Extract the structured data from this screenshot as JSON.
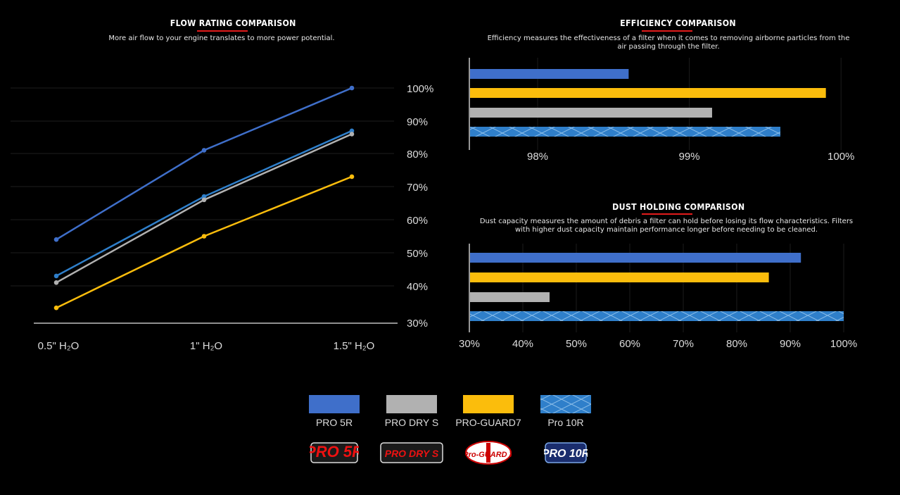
{
  "flow": {
    "title": "FLOW RATING COMPARISON",
    "subtitle": "More air flow to your engine translates to more power potential."
  },
  "efficiency": {
    "title": "EFFICIENCY COMPARISON",
    "subtitle_line1": "Efficiency measures the effectiveness of a filter when it comes to removing airborne particles from the",
    "subtitle_line2": "air passing through the filter."
  },
  "dust": {
    "title": "DUST HOLDING COMPARISON",
    "subtitle_line1": "Dust capacity measures the amount of debris a filter can hold before losing its flow characteristics. Filters",
    "subtitle_line2": "with higher dust capacity maintain performance longer before needing to be cleaned."
  },
  "legend": [
    {
      "label": "PRO 5R",
      "color": "#3f6fca",
      "pattern": "solid"
    },
    {
      "label": "PRO DRY S",
      "color": "#b1b1b1",
      "pattern": "solid"
    },
    {
      "label": "PRO-GUARD7",
      "color": "#fbbd0c",
      "pattern": "solid"
    },
    {
      "label": "Pro 10R",
      "color": "#2f7fca",
      "pattern": "cross-hatch"
    }
  ],
  "logos": [
    {
      "text": "PRO 5R",
      "icon": "pro-5r-logo"
    },
    {
      "text": "PRO DRY S",
      "icon": "pro-dry-s-logo"
    },
    {
      "text": "Pro-GUARD 7",
      "icon": "pro-guard-7-logo"
    },
    {
      "text": "PRO 10R",
      "icon": "pro-10r-logo"
    }
  ],
  "chart_data": [
    {
      "type": "line",
      "title": "FLOW RATING COMPARISON",
      "x": [
        "0.5\" H2O",
        "1\" H2O",
        "1.5\" H2O"
      ],
      "yticks": [
        "100%",
        "90%",
        "80%",
        "70%",
        "60%",
        "50%",
        "40%",
        "30%"
      ],
      "ylim": [
        30,
        100
      ],
      "grid": true,
      "series": [
        {
          "name": "PRO 5R",
          "color": "#3f6fca",
          "values": [
            54,
            81,
            100
          ]
        },
        {
          "name": "Pro 10R",
          "color": "#2f7fca",
          "values": [
            43,
            67,
            87
          ]
        },
        {
          "name": "PRO DRY S",
          "color": "#b1b1b1",
          "values": [
            41,
            66,
            86
          ]
        },
        {
          "name": "PRO-GUARD7",
          "color": "#fbbd0c",
          "values": [
            34,
            55,
            73
          ]
        }
      ]
    },
    {
      "type": "bar",
      "orientation": "horizontal",
      "title": "EFFICIENCY COMPARISON",
      "xticks": [
        "98%",
        "99%",
        "100%"
      ],
      "xlim": [
        97.55,
        100.05
      ],
      "categories": [
        "PRO 5R",
        "PRO-GUARD7",
        "PRO DRY S",
        "Pro 10R"
      ],
      "values": [
        98.6,
        99.9,
        99.15,
        99.6
      ],
      "colors": [
        "#3f6fca",
        "#fbbd0c",
        "#b1b1b1",
        "#2f7fca"
      ],
      "grid": true
    },
    {
      "type": "bar",
      "orientation": "horizontal",
      "title": "DUST HOLDING COMPARISON",
      "xticks": [
        "30%",
        "40%",
        "50%",
        "60%",
        "70%",
        "80%",
        "90%",
        "100%"
      ],
      "xlim": [
        30,
        100
      ],
      "categories": [
        "PRO 5R",
        "PRO-GUARD7",
        "PRO DRY S",
        "Pro 10R"
      ],
      "values": [
        92,
        86,
        45,
        100
      ],
      "colors": [
        "#3f6fca",
        "#fbbd0c",
        "#b1b1b1",
        "#2f7fca"
      ],
      "grid": true
    }
  ]
}
